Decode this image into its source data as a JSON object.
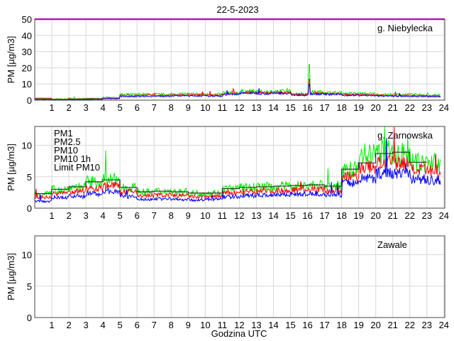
{
  "chart_data": {
    "type": "line",
    "title": "22-5-2023",
    "xlabel": "Godzina UTC",
    "xlim": [
      0,
      24
    ],
    "xticks": [
      1,
      2,
      3,
      4,
      5,
      6,
      7,
      8,
      9,
      10,
      11,
      12,
      13,
      14,
      15,
      16,
      17,
      18,
      19,
      20,
      21,
      22,
      23,
      24
    ],
    "grid": true,
    "colors": {
      "PM1": "#0000ff",
      "PM2.5": "#ff0000",
      "PM10": "#00ee00",
      "PM10 1h": "#000000",
      "Limit PM10": "#ff00ff"
    },
    "legend": {
      "placement": "top-left",
      "entries": [
        "PM1",
        "PM2.5",
        "PM10",
        "PM10 1h",
        "Limit PM10"
      ]
    },
    "limit_pm10": 50,
    "panels": [
      {
        "station": "g. Niebylecka",
        "ylabel": "PM [µg/m3]",
        "ylim": [
          0,
          50
        ],
        "yticks": [
          0,
          10,
          20,
          30,
          40,
          50
        ],
        "hourly_means": {
          "PM10": [
            1.2,
            0.8,
            1.0,
            1.1,
            1.6,
            3.5,
            3.6,
            3.5,
            3.8,
            3.8,
            3.6,
            4.6,
            5.4,
            5.2,
            5.4,
            4.0,
            5.0,
            4.6,
            4.1,
            4.0,
            3.5,
            3.5,
            3.4,
            3.1
          ],
          "PM2.5": [
            0.9,
            0.5,
            0.7,
            0.8,
            1.2,
            2.9,
            3.0,
            2.9,
            3.2,
            3.2,
            3.0,
            4.0,
            4.8,
            4.6,
            4.8,
            3.5,
            4.4,
            4.0,
            3.5,
            3.4,
            3.0,
            2.9,
            2.8,
            2.6
          ],
          "PM1": [
            0.5,
            0.2,
            0.4,
            0.5,
            0.9,
            2.3,
            2.4,
            2.4,
            2.7,
            2.7,
            2.5,
            3.5,
            4.3,
            4.1,
            4.3,
            3.0,
            3.9,
            3.5,
            3.0,
            2.9,
            2.5,
            2.4,
            2.3,
            2.1
          ]
        },
        "spike": {
          "hour": 16.1,
          "PM10": 22,
          "PM2.5": 13,
          "PM1": 10
        }
      },
      {
        "station": "g. Zarnowska",
        "ylabel": "PM [µg/m3]",
        "ylim": [
          0,
          13
        ],
        "yticks": [
          0,
          5,
          10
        ],
        "hourly_means": {
          "PM10 1h": [
            2.3,
            3.0,
            3.4,
            4.2,
            4.5,
            3.3,
            2.6,
            2.7,
            2.6,
            2.4,
            2.4,
            3.1,
            3.3,
            3.4,
            3.5,
            3.6,
            3.7,
            3.5,
            6.2,
            7.2,
            8.7,
            8.9,
            7.3,
            null
          ],
          "PM10": [
            2.3,
            3.0,
            3.4,
            4.2,
            4.5,
            3.3,
            2.6,
            2.7,
            2.6,
            2.4,
            2.4,
            3.1,
            3.3,
            3.4,
            3.5,
            3.6,
            3.7,
            3.5,
            6.2,
            8.5,
            9.0,
            8.6,
            7.2,
            7.0
          ],
          "PM2.5": [
            1.7,
            2.4,
            2.6,
            3.2,
            3.6,
            2.6,
            2.0,
            2.1,
            2.0,
            1.8,
            1.9,
            2.4,
            2.6,
            2.7,
            2.8,
            2.9,
            3.0,
            2.8,
            5.0,
            6.5,
            7.2,
            7.2,
            6.0,
            5.8
          ],
          "PM1": [
            1.1,
            1.7,
            1.9,
            2.3,
            2.7,
            1.8,
            1.4,
            1.5,
            1.4,
            1.3,
            1.4,
            1.8,
            2.0,
            2.1,
            2.2,
            2.2,
            2.3,
            2.1,
            4.0,
            4.8,
            5.6,
            5.6,
            4.6,
            4.4
          ]
        }
      },
      {
        "station": "Zawale",
        "ylabel": "PM [µg/m3]",
        "ylim": [
          0,
          13
        ],
        "yticks": [
          0,
          5,
          10
        ],
        "hourly_means": {}
      }
    ]
  }
}
